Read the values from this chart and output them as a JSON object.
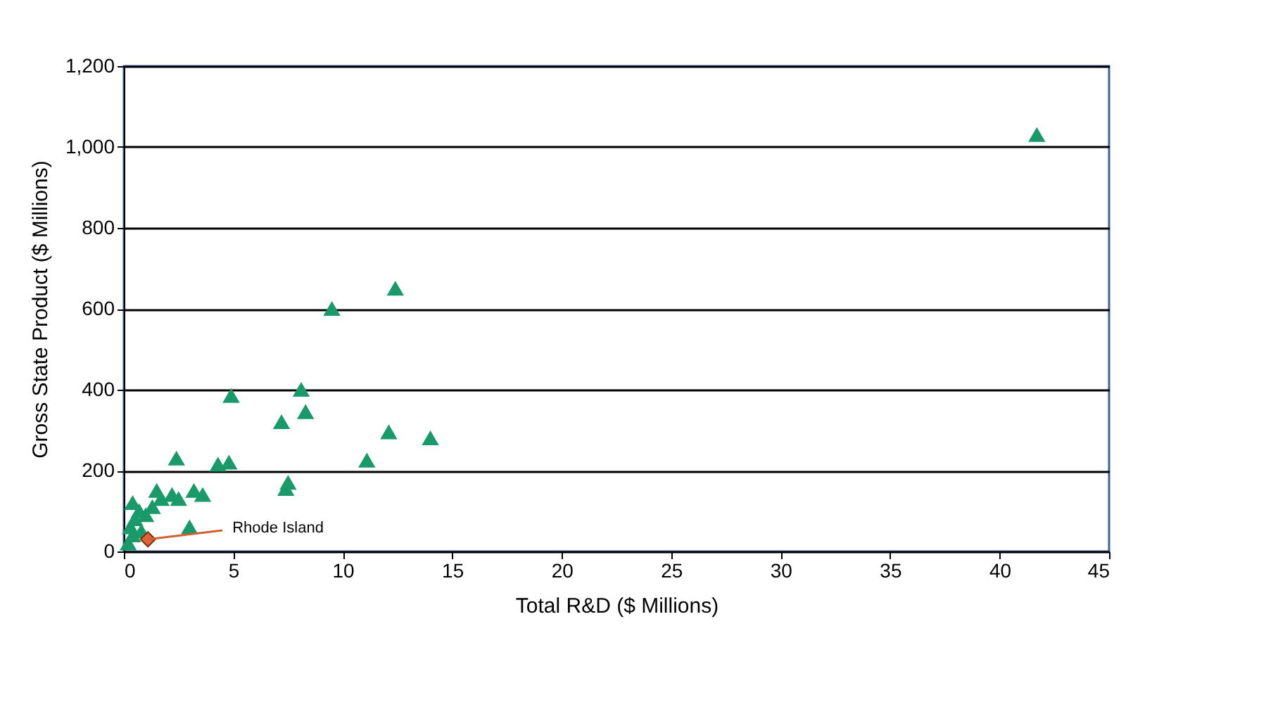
{
  "chart_data": {
    "type": "scatter",
    "xlabel": "Total R&D ($ Millions)",
    "ylabel": "Gross State Product ($ Millions)",
    "xlim": [
      0,
      45
    ],
    "xticks": [
      0,
      5,
      10,
      15,
      20,
      25,
      30,
      35,
      40,
      45
    ],
    "ylim": [
      0,
      1200
    ],
    "yticks": [
      0,
      200,
      400,
      600,
      800,
      {
        "value": 1000,
        "label": "1,000"
      },
      {
        "value": 1200,
        "label": "1,200"
      }
    ],
    "grid": "y",
    "series": [
      {
        "color": "#1a9a6a",
        "marker": "triangle",
        "x": [
          0.2,
          0.4,
          0.3,
          0.5,
          0.7,
          0.4,
          0.8,
          1.0,
          1.3,
          1.5,
          1.7,
          2.2,
          2.5,
          3.2,
          3.6,
          3.0,
          2.4,
          4.3,
          4.8,
          7.5,
          7.4,
          11.1,
          14.0,
          12.1,
          7.2,
          8.3,
          8.1,
          4.9,
          9.5,
          12.4,
          41.7
        ],
        "values": [
          20,
          40,
          60,
          80,
          100,
          120,
          50,
          90,
          110,
          150,
          130,
          140,
          130,
          150,
          140,
          60,
          230,
          215,
          220,
          170,
          155,
          225,
          280,
          295,
          320,
          345,
          400,
          385,
          600,
          650,
          1030
        ]
      },
      {
        "color": "#e0603a",
        "marker": "diamond",
        "x": [
          1.1
        ],
        "values": [
          30
        ]
      }
    ],
    "annotations": [
      {
        "text": "Rhode Island",
        "x": 1.1,
        "y": 30
      }
    ]
  }
}
